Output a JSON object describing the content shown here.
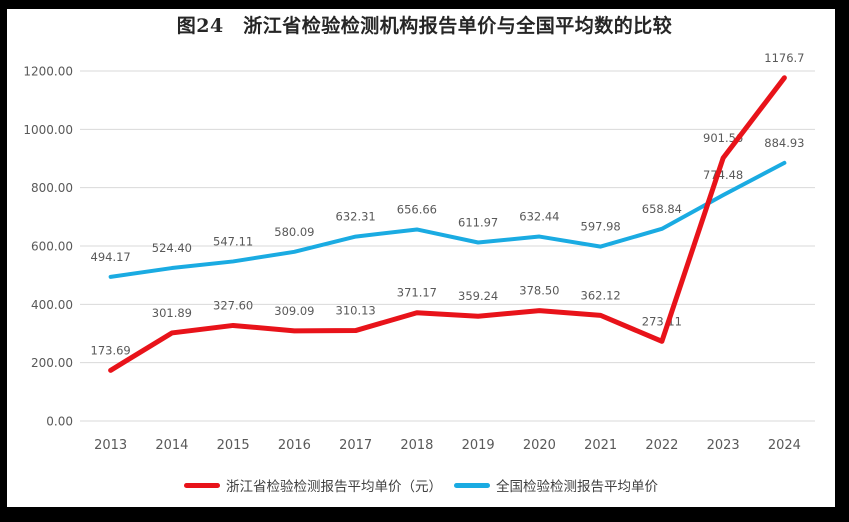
{
  "title": "图24　浙江省检验检测机构报告单价与全国平均数的比较",
  "chart_data": {
    "type": "line",
    "categories": [
      "2013",
      "2014",
      "2015",
      "2016",
      "2017",
      "2018",
      "2019",
      "2020",
      "2021",
      "2022",
      "2023",
      "2024"
    ],
    "series": [
      {
        "name": "浙江省检验检测报告平均单价（元）",
        "color": "#e8131a",
        "stroke_width": 5,
        "values": [
          173.69,
          301.89,
          327.6,
          309.09,
          310.13,
          371.17,
          359.24,
          378.5,
          362.12,
          273.11,
          901.56,
          1176.7
        ],
        "labels": [
          "173.69",
          "301.89",
          "327.60",
          "309.09",
          "310.13",
          "371.17",
          "359.24",
          "378.50",
          "362.12",
          "273.11",
          "901.56",
          "1176.7"
        ]
      },
      {
        "name": "全国检验检测报告平均单价",
        "color": "#1aabe2",
        "stroke_width": 4,
        "values": [
          494.17,
          524.4,
          547.11,
          580.09,
          632.31,
          656.66,
          611.97,
          632.44,
          597.98,
          658.84,
          774.48,
          884.93
        ],
        "labels": [
          "494.17",
          "524.40",
          "547.11",
          "580.09",
          "632.31",
          "656.66",
          "611.97",
          "632.44",
          "597.98",
          "658.84",
          "774.48",
          "884.93"
        ]
      }
    ],
    "y_ticks": [
      {
        "value": 0,
        "label": "0.00"
      },
      {
        "value": 200,
        "label": "200.00"
      },
      {
        "value": 400,
        "label": "400.00"
      },
      {
        "value": 600,
        "label": "600.00"
      },
      {
        "value": 800,
        "label": "800.00"
      },
      {
        "value": 1000,
        "label": "1000.00"
      },
      {
        "value": 1200,
        "label": "1200.00"
      }
    ],
    "ylim": [
      0,
      1200
    ],
    "grid": true,
    "legend_position": "bottom",
    "colors": {
      "gridline": "#d9d9d9",
      "tick_text": "#595959",
      "data_label_text": "#595959",
      "title_text": "#262626",
      "frame_border": "#000000",
      "plot_background": "#ffffff"
    }
  }
}
